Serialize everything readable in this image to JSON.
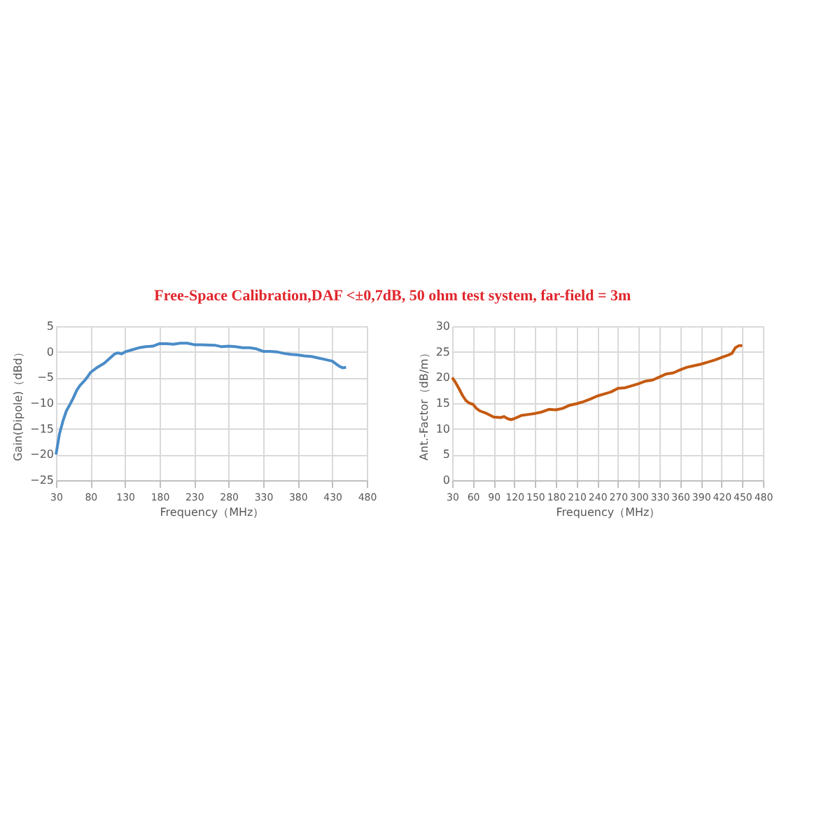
{
  "chart_data": [
    {
      "type": "line",
      "title": "Free-Space Calibration,DAF <±0,7dB,  50 ohm  test system,  far-field = 3m",
      "xlabel": "Frequency（MHz）",
      "ylabel": "Gain(Dipole)（dBd）",
      "xlim": [
        30,
        480
      ],
      "xticks": [
        30,
        80,
        130,
        180,
        230,
        280,
        330,
        380,
        430,
        480
      ],
      "ylim": [
        -25,
        5
      ],
      "yticks": [
        -25,
        -20,
        -15,
        -10,
        -5,
        0,
        5
      ],
      "grid": true,
      "legend": false,
      "marker": "none",
      "line_style": "solid",
      "series": [
        {
          "color": "#4a8cc8",
          "x": [
            30,
            35,
            40,
            45,
            50,
            55,
            60,
            65,
            70,
            75,
            80,
            90,
            100,
            110,
            115,
            120,
            125,
            130,
            140,
            150,
            160,
            170,
            180,
            190,
            200,
            210,
            220,
            230,
            240,
            260,
            270,
            280,
            290,
            300,
            310,
            320,
            330,
            340,
            350,
            360,
            370,
            380,
            390,
            400,
            410,
            420,
            430,
            440,
            445,
            450
          ],
          "values": [
            -20,
            -16,
            -13.5,
            -11.5,
            -10.3,
            -9,
            -7.5,
            -6.5,
            -5.8,
            -5,
            -4,
            -3,
            -2.2,
            -1,
            -0.4,
            -0.2,
            -0.4,
            0,
            0.4,
            0.8,
            1,
            1.1,
            1.6,
            1.6,
            1.5,
            1.7,
            1.7,
            1.4,
            1.4,
            1.3,
            1,
            1.1,
            1,
            0.8,
            0.8,
            0.6,
            0.1,
            0.1,
            0,
            -0.3,
            -0.5,
            -0.6,
            -0.8,
            -0.9,
            -1.2,
            -1.5,
            -1.8,
            -2.8,
            -3.1,
            -3
          ]
        }
      ]
    },
    {
      "type": "line",
      "xlabel": "Frequency（MHz）",
      "ylabel": "Ant.-Factor（dB/m）",
      "xlim": [
        30,
        480
      ],
      "xticks": [
        30,
        60,
        90,
        120,
        150,
        180,
        210,
        240,
        270,
        300,
        330,
        360,
        390,
        420,
        450,
        480
      ],
      "ylim": [
        0,
        30
      ],
      "yticks": [
        0,
        5,
        10,
        15,
        20,
        25,
        30
      ],
      "grid": true,
      "legend": false,
      "marker": "none",
      "line_style": "solid",
      "series": [
        {
          "color": "#c55a11",
          "x": [
            30,
            35,
            40,
            45,
            50,
            55,
            60,
            65,
            70,
            80,
            90,
            100,
            105,
            110,
            115,
            120,
            130,
            140,
            150,
            160,
            170,
            180,
            190,
            200,
            210,
            220,
            230,
            240,
            250,
            260,
            270,
            280,
            290,
            300,
            310,
            320,
            330,
            340,
            350,
            360,
            370,
            380,
            390,
            400,
            410,
            420,
            430,
            435,
            440,
            445,
            450
          ],
          "values": [
            20,
            19,
            17.8,
            16.5,
            15.5,
            15,
            14.8,
            14,
            13.5,
            13,
            12.3,
            12.2,
            12.4,
            12,
            11.8,
            12,
            12.6,
            12.8,
            13,
            13.3,
            13.8,
            13.7,
            14,
            14.6,
            14.9,
            15.3,
            15.8,
            16.4,
            16.8,
            17.2,
            17.9,
            18,
            18.4,
            18.8,
            19.3,
            19.5,
            20.1,
            20.7,
            20.9,
            21.5,
            22,
            22.3,
            22.6,
            23,
            23.4,
            23.9,
            24.4,
            24.7,
            25.8,
            26.2,
            26.2
          ]
        }
      ]
    }
  ]
}
